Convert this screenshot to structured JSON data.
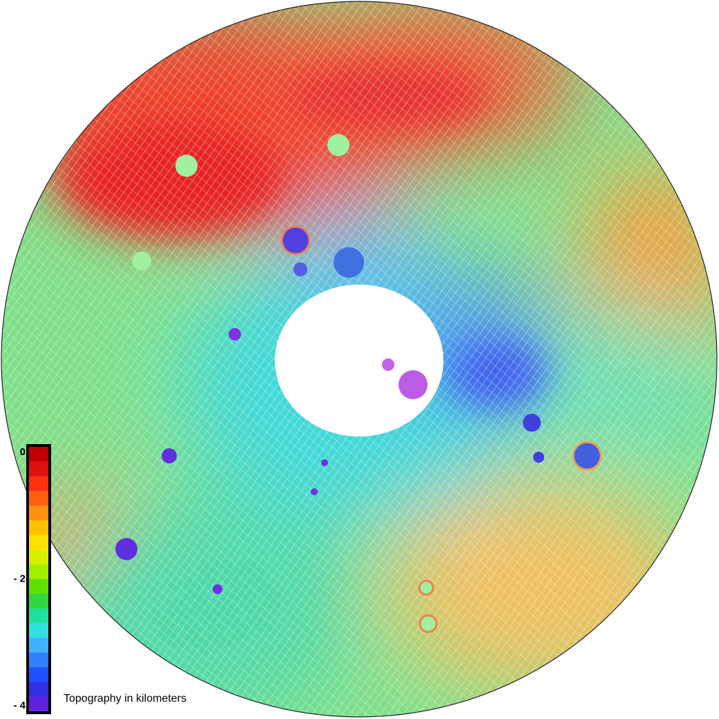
{
  "map": {
    "colorbar": {
      "lim": [
        -4,
        0
      ],
      "ticks": [
        {
          "value": 0,
          "label": "0"
        },
        {
          "value": -2,
          "label": "- 2"
        },
        {
          "value": -4,
          "label": "- 4"
        }
      ],
      "colors": [
        "#c00000",
        "#e01010",
        "#ff3010",
        "#ff6010",
        "#ff9010",
        "#ffc000",
        "#ffe000",
        "#d8f000",
        "#a0f000",
        "#60e000",
        "#30d840",
        "#20e0a0",
        "#30e0e0",
        "#40b0ff",
        "#3080ff",
        "#2050ff",
        "#3030e0",
        "#6020e0"
      ]
    },
    "caption": "Topography in  kilometers"
  }
}
